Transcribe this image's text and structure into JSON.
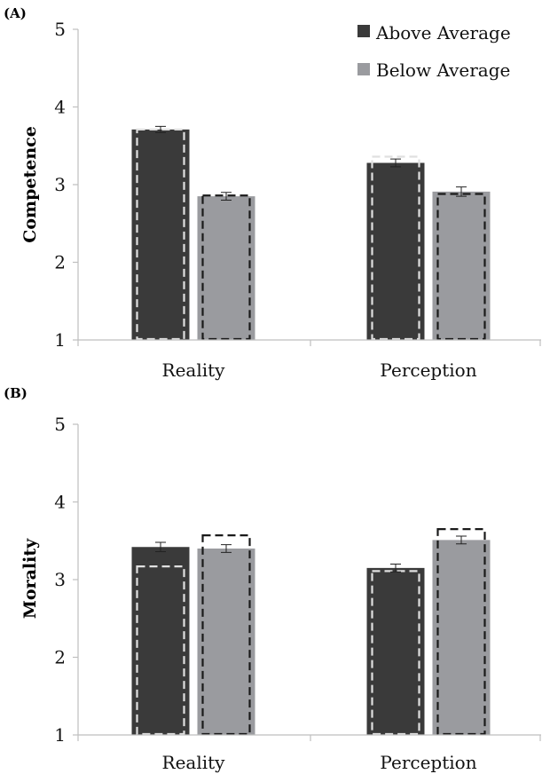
{
  "colors": {
    "above": "#3a3a3a",
    "below": "#9a9b9f",
    "axis": "#bfbfbf",
    "error": "#222222",
    "dash_on_dark": "#e0e0e0",
    "dash_on_light": "#1a1a1a"
  },
  "legend": {
    "placement": "top-right",
    "items": [
      "Above Average",
      "Below Average"
    ]
  },
  "chart_data": [
    {
      "type": "bar",
      "panel_label": "(A)",
      "ylabel": "Competence",
      "xlabel": "",
      "ylim": [
        1,
        5
      ],
      "yticks": [
        "1",
        "2",
        "3",
        "4",
        "5"
      ],
      "categories": [
        "Reality",
        "Perception"
      ],
      "series": [
        {
          "name": "Above Average",
          "values": [
            3.71,
            3.28
          ],
          "errors": [
            0.04,
            0.05
          ],
          "dashed_values": [
            3.71,
            3.36
          ]
        },
        {
          "name": "Below Average",
          "values": [
            2.85,
            2.91
          ],
          "errors": [
            0.05,
            0.06
          ],
          "dashed_values": [
            2.86,
            2.88
          ]
        }
      ],
      "grid": false
    },
    {
      "type": "bar",
      "panel_label": "(B)",
      "ylabel": "Morality",
      "xlabel": "",
      "ylim": [
        1,
        5
      ],
      "yticks": [
        "1",
        "2",
        "3",
        "4",
        "5"
      ],
      "categories": [
        "Reality",
        "Perception"
      ],
      "series": [
        {
          "name": "Above Average",
          "values": [
            3.42,
            3.15
          ],
          "errors": [
            0.06,
            0.05
          ],
          "dashed_values": [
            3.17,
            3.11
          ]
        },
        {
          "name": "Below Average",
          "values": [
            3.4,
            3.51
          ],
          "errors": [
            0.05,
            0.05
          ],
          "dashed_values": [
            3.57,
            3.65
          ]
        }
      ],
      "grid": false
    }
  ]
}
